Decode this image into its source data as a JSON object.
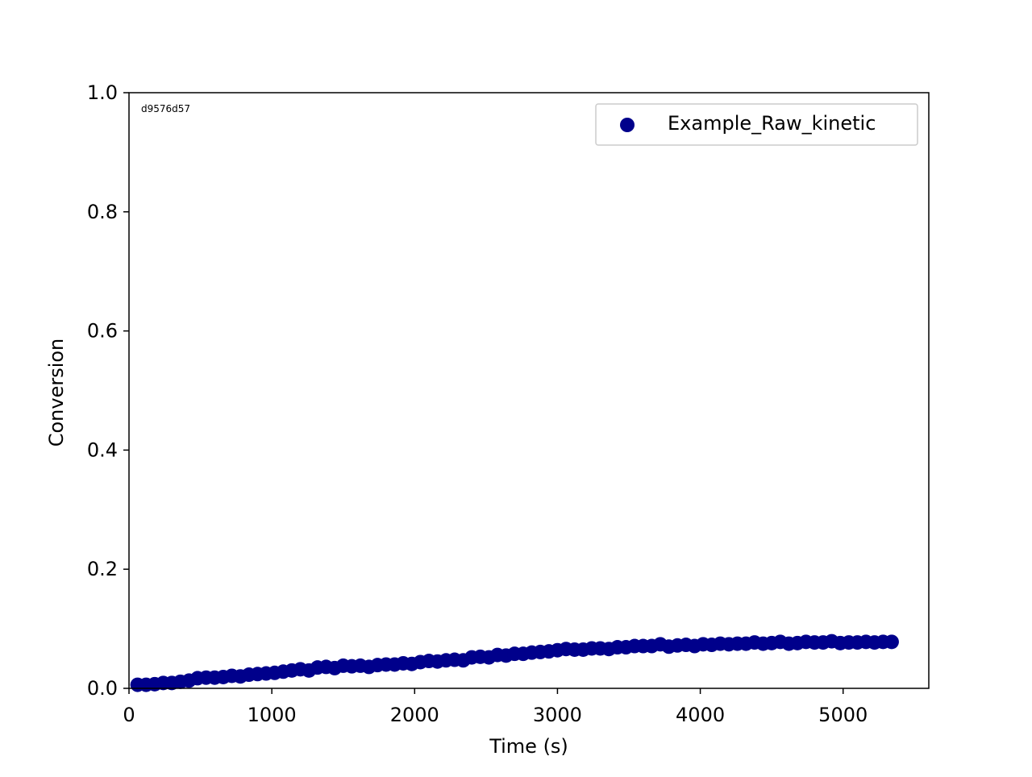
{
  "chart_data": {
    "type": "scatter",
    "title": "",
    "xlabel": "Time (s)",
    "ylabel": "Conversion",
    "xlim": [
      0,
      5600
    ],
    "ylim": [
      0,
      1.0
    ],
    "x_ticks": [
      0,
      1000,
      2000,
      3000,
      4000,
      5000
    ],
    "x_tick_labels": [
      "0",
      "1000",
      "2000",
      "3000",
      "4000",
      "5000"
    ],
    "y_ticks": [
      0.0,
      0.2,
      0.4,
      0.6,
      0.8,
      1.0
    ],
    "y_tick_labels": [
      "0.0",
      "0.2",
      "0.4",
      "0.6",
      "0.8",
      "1.0"
    ],
    "grid": false,
    "legend_position": "top-right",
    "annotation": "d9576d57",
    "annotation_color": "#800080",
    "series": [
      {
        "name": "Example_Raw_kinetic",
        "color": "#00008B",
        "x": [
          60,
          120,
          180,
          240,
          300,
          360,
          420,
          480,
          540,
          600,
          660,
          720,
          780,
          840,
          900,
          960,
          1020,
          1080,
          1140,
          1200,
          1260,
          1320,
          1380,
          1440,
          1500,
          1560,
          1620,
          1680,
          1740,
          1800,
          1860,
          1920,
          1980,
          2040,
          2100,
          2160,
          2220,
          2280,
          2340,
          2400,
          2460,
          2520,
          2580,
          2640,
          2700,
          2760,
          2820,
          2880,
          2940,
          3000,
          3060,
          3120,
          3180,
          3240,
          3300,
          3360,
          3420,
          3480,
          3540,
          3600,
          3660,
          3720,
          3780,
          3840,
          3900,
          3960,
          4020,
          4080,
          4140,
          4200,
          4260,
          4320,
          4380,
          4440,
          4500,
          4560,
          4620,
          4680,
          4740,
          4800,
          4860,
          4920,
          4980,
          5040,
          5100,
          5160,
          5220,
          5280,
          5340
        ],
        "y": [
          0.006,
          0.006,
          0.007,
          0.009,
          0.009,
          0.011,
          0.013,
          0.017,
          0.018,
          0.018,
          0.019,
          0.021,
          0.02,
          0.023,
          0.024,
          0.025,
          0.026,
          0.028,
          0.03,
          0.032,
          0.03,
          0.035,
          0.036,
          0.034,
          0.038,
          0.037,
          0.038,
          0.036,
          0.039,
          0.04,
          0.04,
          0.042,
          0.041,
          0.044,
          0.046,
          0.045,
          0.047,
          0.048,
          0.047,
          0.052,
          0.053,
          0.052,
          0.056,
          0.055,
          0.058,
          0.058,
          0.06,
          0.061,
          0.062,
          0.064,
          0.066,
          0.065,
          0.065,
          0.067,
          0.067,
          0.066,
          0.069,
          0.069,
          0.071,
          0.071,
          0.071,
          0.074,
          0.07,
          0.072,
          0.073,
          0.071,
          0.074,
          0.073,
          0.075,
          0.074,
          0.075,
          0.075,
          0.077,
          0.075,
          0.076,
          0.078,
          0.075,
          0.076,
          0.078,
          0.077,
          0.077,
          0.079,
          0.076,
          0.077,
          0.077,
          0.078,
          0.077,
          0.078,
          0.078
        ]
      }
    ]
  }
}
